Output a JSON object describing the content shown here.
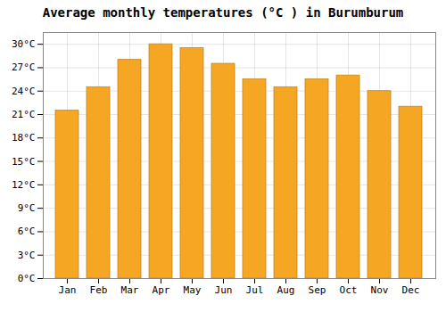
{
  "chart_data": {
    "type": "bar",
    "title": "Average monthly temperatures (°C ) in Burumburum",
    "categories": [
      "Jan",
      "Feb",
      "Mar",
      "Apr",
      "May",
      "Jun",
      "Jul",
      "Aug",
      "Sep",
      "Oct",
      "Nov",
      "Dec"
    ],
    "values": [
      21.5,
      24.5,
      28.0,
      30.0,
      29.5,
      27.5,
      25.5,
      24.5,
      25.5,
      26.0,
      24.0,
      22.0
    ],
    "color": "#F5A623",
    "ylim": [
      0,
      31.5
    ],
    "yticks": [
      {
        "value": 0,
        "label": "0°C"
      },
      {
        "value": 3,
        "label": "3°C"
      },
      {
        "value": 6,
        "label": "6°C"
      },
      {
        "value": 9,
        "label": "9°C"
      },
      {
        "value": 12,
        "label": "12°C"
      },
      {
        "value": 15,
        "label": "15°C"
      },
      {
        "value": 18,
        "label": "18°C"
      },
      {
        "value": 21,
        "label": "21°C"
      },
      {
        "value": 24,
        "label": "24°C"
      },
      {
        "value": 27,
        "label": "27°C"
      },
      {
        "value": 30,
        "label": "30°C"
      }
    ],
    "grid": true
  }
}
